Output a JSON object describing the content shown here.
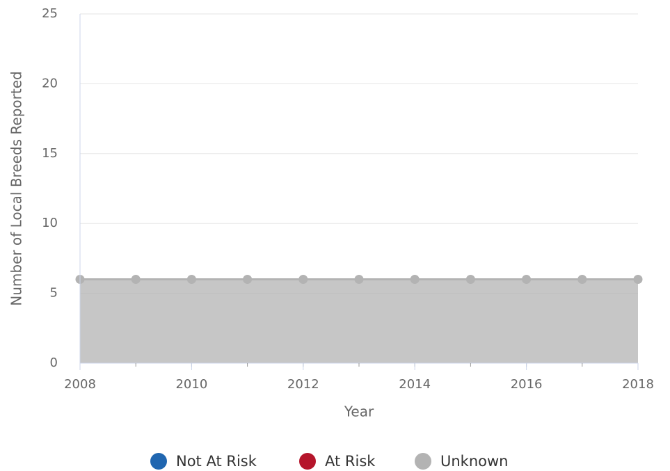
{
  "chart_data": {
    "type": "area",
    "stacked": true,
    "x": [
      2008,
      2009,
      2010,
      2011,
      2012,
      2013,
      2014,
      2015,
      2016,
      2017,
      2018
    ],
    "series": [
      {
        "name": "Not At Risk",
        "color": "#2066b0",
        "values": [
          null,
          null,
          null,
          null,
          null,
          null,
          null,
          null,
          null,
          null,
          null
        ]
      },
      {
        "name": "At Risk",
        "color": "#b5152b",
        "values": [
          null,
          null,
          null,
          null,
          null,
          null,
          null,
          null,
          null,
          null,
          null
        ]
      },
      {
        "name": "Unknown",
        "color": "#b3b3b3",
        "values": [
          6,
          6,
          6,
          6,
          6,
          6,
          6,
          6,
          6,
          6,
          6
        ]
      }
    ],
    "xlabel": "Year",
    "ylabel": "Number of Local Breeds Reported",
    "xlim": [
      2008,
      2018
    ],
    "xticks": [
      2008,
      2010,
      2012,
      2014,
      2016,
      2018
    ],
    "ylim": [
      0,
      25
    ],
    "yticks": [
      0,
      5,
      10,
      15,
      20,
      25
    ],
    "grid": true,
    "legend": "bottom"
  }
}
